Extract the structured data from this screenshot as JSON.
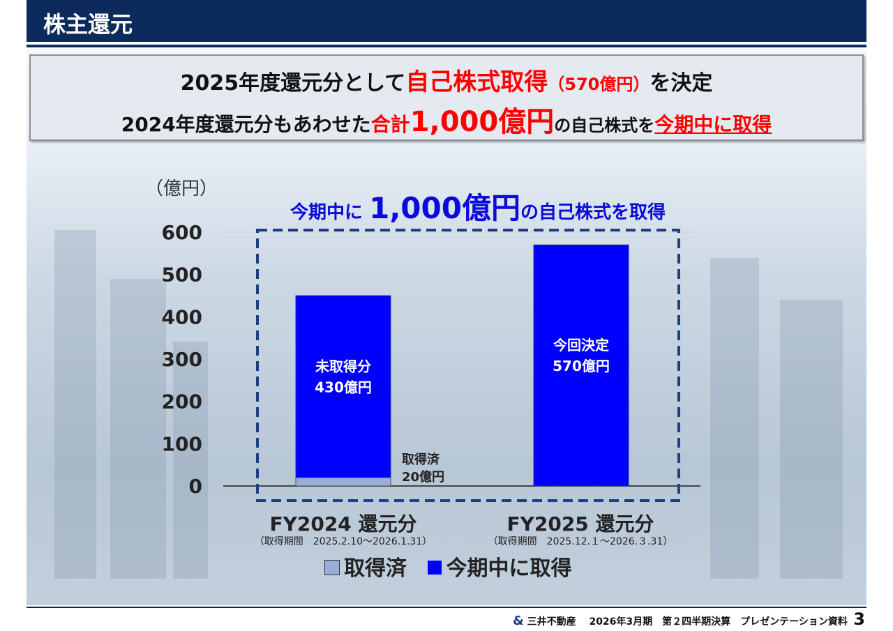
{
  "header": {
    "title": "株主還元"
  },
  "callout": {
    "line1_a": "2025年度還元分として",
    "line1_b": "自己株式取得",
    "line1_c": "（570億円）",
    "line1_d": "を決定",
    "line2_a": "2024年度還元分もあわせた",
    "line2_b": "合計",
    "line2_c": "1,000億円",
    "line2_d": "の自己株式を",
    "line2_e": "今期中に取得"
  },
  "chart_data": {
    "type": "bar",
    "stacked": true,
    "title_a": "今期中に ",
    "title_b": "1,000億円",
    "title_c": "の自己株式を取得",
    "ylabel": "（億円）",
    "ylim": [
      0,
      600
    ],
    "yticks": [
      "0",
      "100",
      "200",
      "300",
      "400",
      "500",
      "600"
    ],
    "grid": true,
    "categories": [
      "FY2024 還元分",
      "FY2025 還元分"
    ],
    "category_notes": [
      "（取得期間　2025.2.10～2026.1.31）",
      "（取得期間　2025.12.１～2026.３.31）"
    ],
    "series": [
      {
        "name": "取得済",
        "color": "#98aed6",
        "values": [
          20,
          0
        ]
      },
      {
        "name": "今期中に取得",
        "color": "#0000ff",
        "values": [
          430,
          570
        ]
      }
    ],
    "bar_labels": [
      {
        "line1": "未取得分",
        "line2": "430億円"
      },
      {
        "line1": "今回決定",
        "line2": "570億円"
      }
    ],
    "annotation": {
      "line1": "取得済",
      "line2": "20億円"
    }
  },
  "footer": {
    "logo_mark": "&",
    "company": "三井不動産",
    "doc": "2026年3月期　第２四半期決算　プレゼンテーション資料",
    "page": "3"
  }
}
